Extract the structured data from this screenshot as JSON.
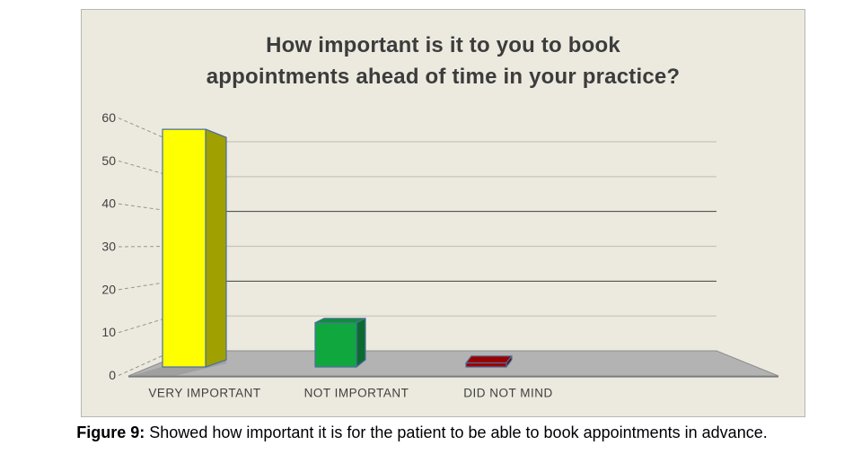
{
  "figure": {
    "caption_prefix": "Figure 9:",
    "caption_text": " Showed how important it is for the patient to be able to book appointments in advance."
  },
  "chart_data": {
    "type": "bar",
    "style": "3d-column",
    "title": "How important is it to you to book appointments ahead of time in your practice?",
    "title_lines": [
      "How important is it to you to book",
      "appointments ahead of time in your practice?"
    ],
    "categories": [
      "VERY IMPORTANT",
      "NOT IMPORTANT",
      "DID NOT MIND"
    ],
    "values": [
      59,
      11,
      1
    ],
    "xlabel": "",
    "ylabel": "",
    "ylim": [
      0,
      60
    ],
    "yticks": [
      0,
      10,
      20,
      30,
      40,
      50,
      60
    ],
    "grid": true,
    "dark_gridlines": [
      20,
      40
    ],
    "legend": "none",
    "series_colors": [
      {
        "front": "#FFFF00",
        "side": "#A0A000",
        "top": "#D6D600"
      },
      {
        "front": "#10A73F",
        "side": "#0B6B2F",
        "top": "#0D8F38"
      },
      {
        "front": "#9E0000",
        "side": "#5E0000",
        "top": "#990000"
      }
    ],
    "colors": {
      "plot_bg": "#ECEADF",
      "floor": "#B3B3B3",
      "floor_edge": "#7A7A7A",
      "floor_outline": "#8D8D8D",
      "bar_outline": "#4C6F9C",
      "grid_light": "#C7C4B7",
      "grid_dark": "#3F3F3F",
      "tick": "#98968C",
      "text": "#404040",
      "shadow": "#9C9C9C"
    }
  }
}
